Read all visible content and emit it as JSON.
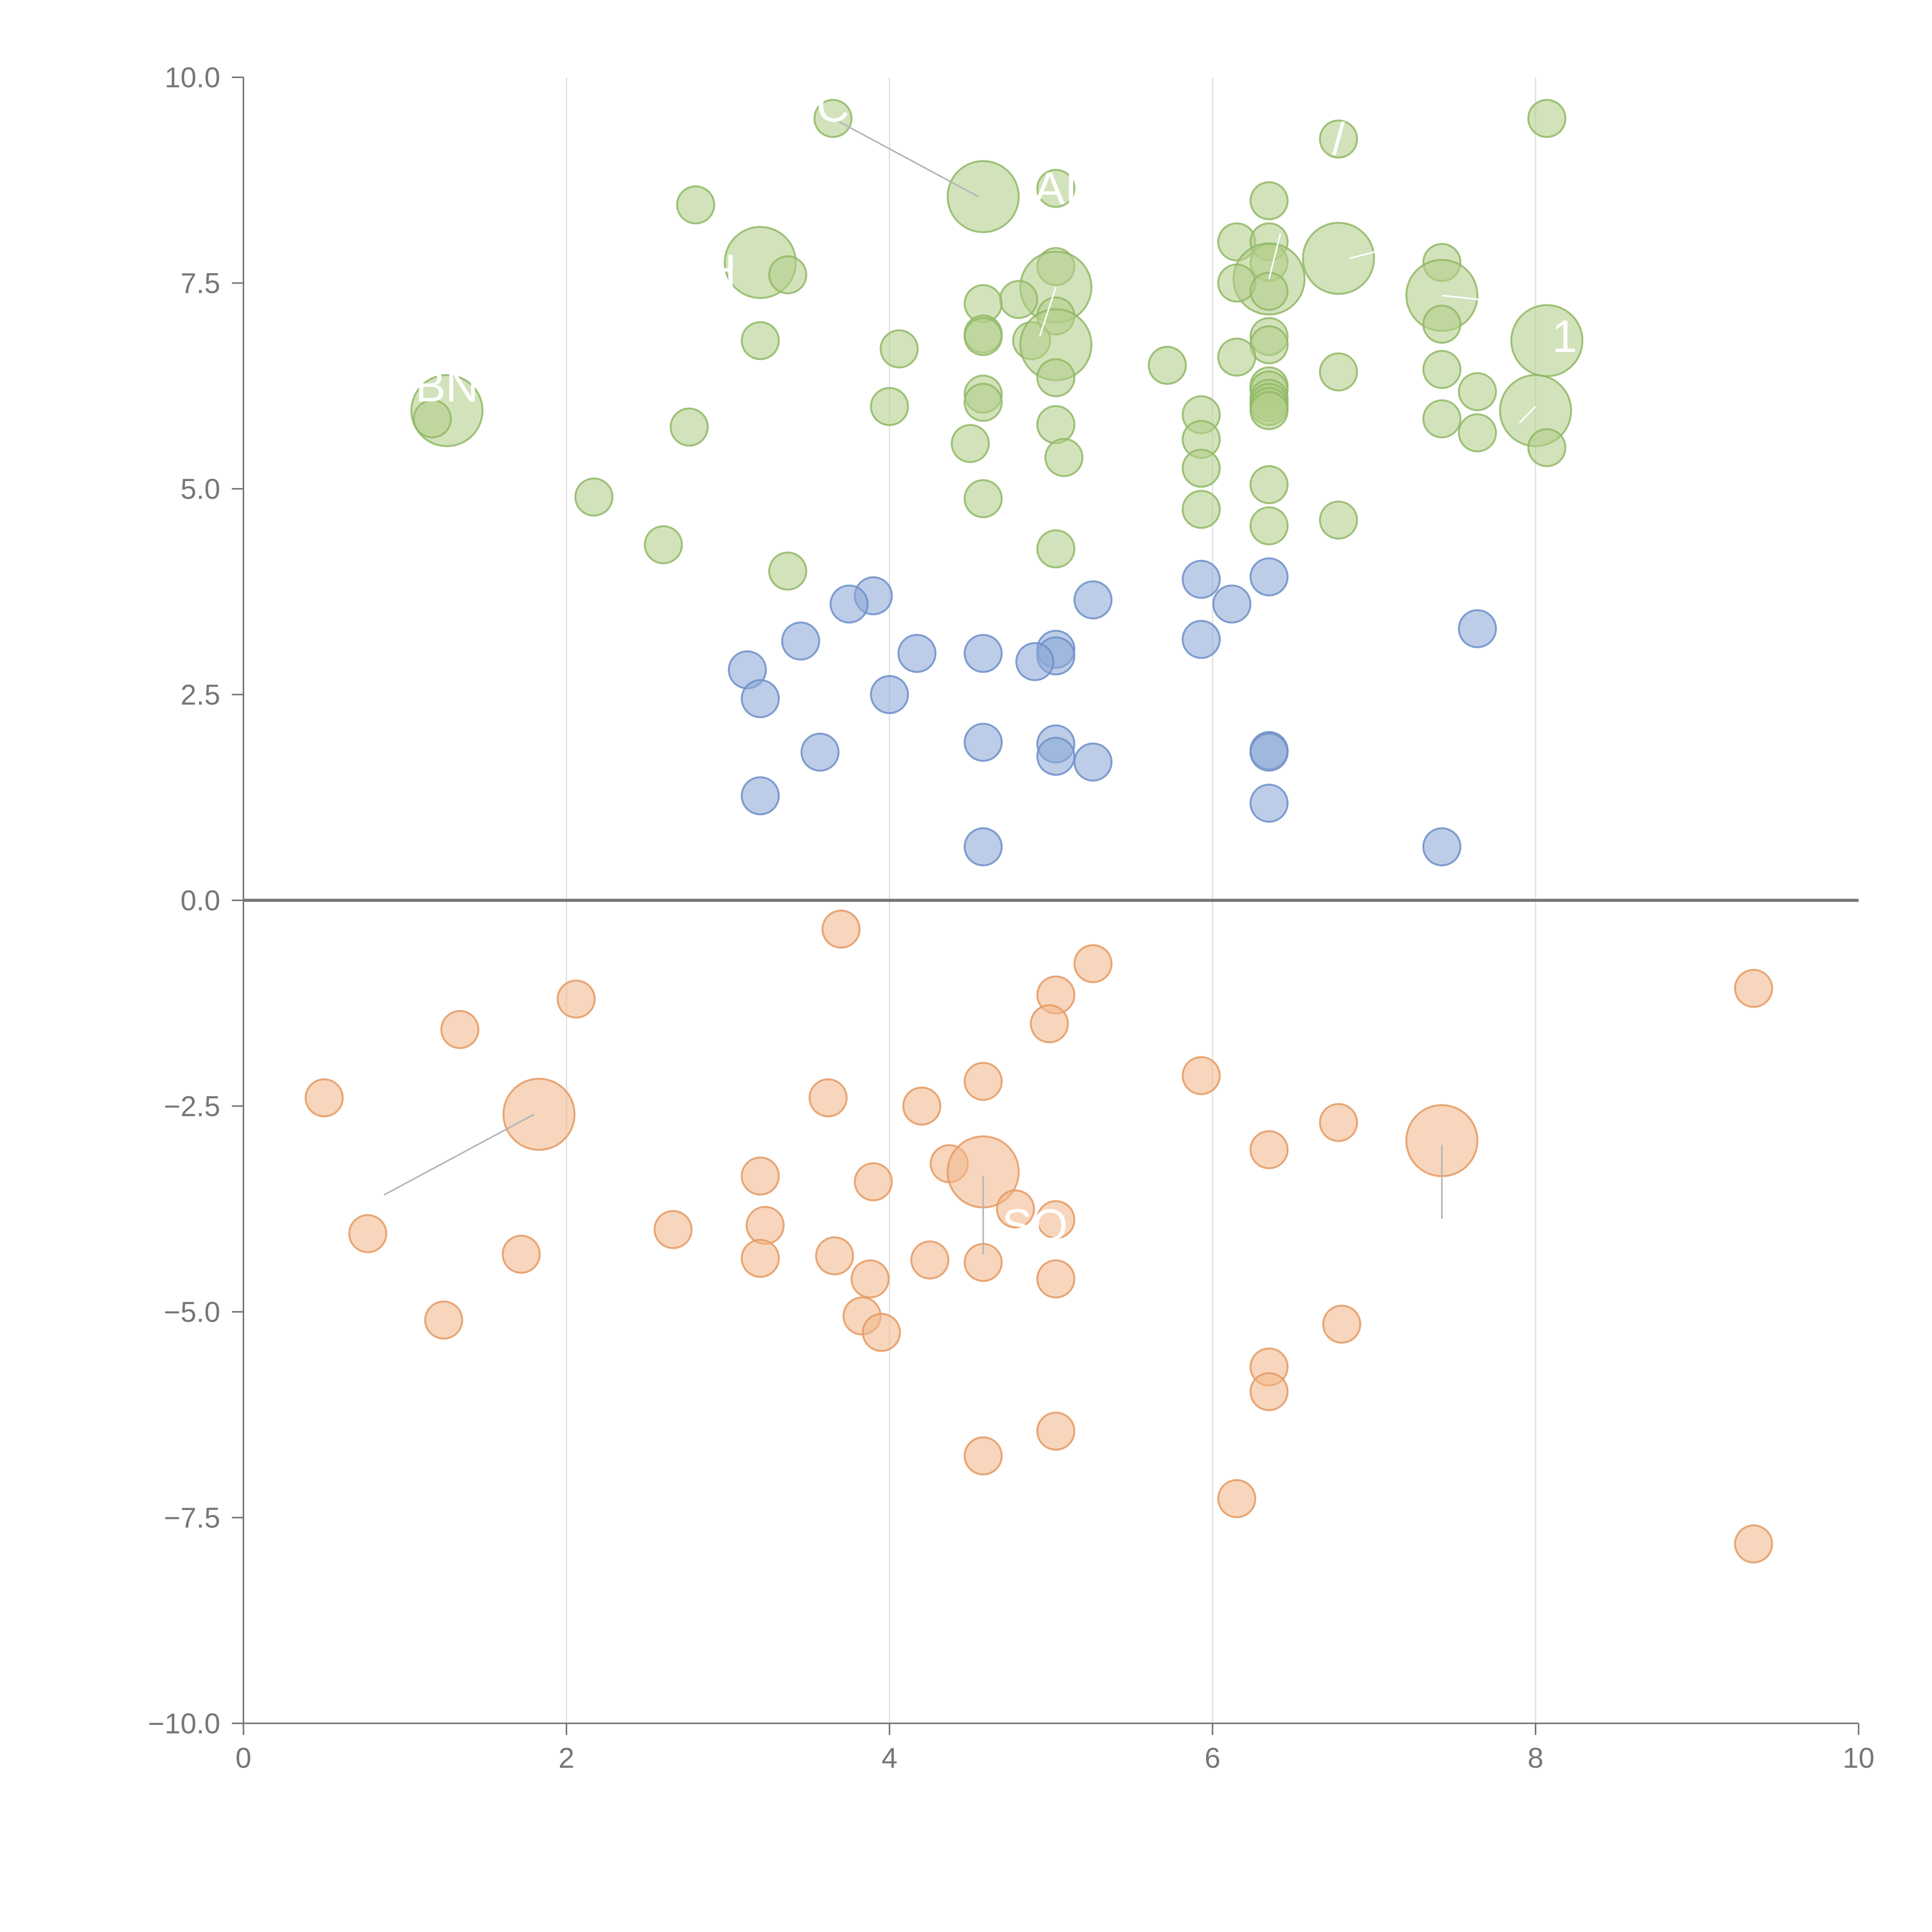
{
  "chart_data": {
    "type": "scatter",
    "title": "",
    "xlabel": "",
    "ylabel": "",
    "xlim": [
      0,
      10
    ],
    "ylim": [
      -10,
      10
    ],
    "x_ticks": [
      {
        "value": 0,
        "label": "0"
      },
      {
        "value": 2,
        "label": "2"
      },
      {
        "value": 4,
        "label": "4"
      },
      {
        "value": 6,
        "label": "6"
      },
      {
        "value": 8,
        "label": "8"
      },
      {
        "value": 10,
        "label": "10"
      }
    ],
    "y_ticks": [
      {
        "value": 10,
        "label": "10.0"
      },
      {
        "value": 7.5,
        "label": "7.5"
      },
      {
        "value": 5,
        "label": "5.0"
      },
      {
        "value": 2.5,
        "label": "2.5"
      },
      {
        "value": 0,
        "label": "0.0"
      },
      {
        "value": -2.5,
        "label": "−2.5"
      },
      {
        "value": -5,
        "label": "−5.0"
      },
      {
        "value": -7.5,
        "label": "−7.5"
      },
      {
        "value": -10,
        "label": "−10.0"
      }
    ],
    "grid": {
      "vertical": true,
      "horizontal": false
    },
    "zero_line": true,
    "legend": "none",
    "series": [
      {
        "color": "#b2cf8a",
        "stroke": "#92b866",
        "points": [
          {
            "x": 3.65,
            "y": 9.5
          },
          {
            "x": 8.07,
            "y": 9.5
          },
          {
            "x": 6.78,
            "y": 9.25
          },
          {
            "x": 5.03,
            "y": 8.65
          },
          {
            "x": 4.58,
            "y": 8.55,
            "big": true
          },
          {
            "x": 6.35,
            "y": 8.5
          },
          {
            "x": 2.8,
            "y": 8.45
          },
          {
            "x": 6.15,
            "y": 8.0
          },
          {
            "x": 6.35,
            "y": 8.0
          },
          {
            "x": 6.78,
            "y": 7.8,
            "big": true
          },
          {
            "x": 3.2,
            "y": 7.75,
            "big": true
          },
          {
            "x": 6.35,
            "y": 7.75
          },
          {
            "x": 7.42,
            "y": 7.75
          },
          {
            "x": 5.03,
            "y": 7.7
          },
          {
            "x": 3.37,
            "y": 7.6
          },
          {
            "x": 6.35,
            "y": 7.55,
            "big": true
          },
          {
            "x": 6.15,
            "y": 7.5
          },
          {
            "x": 5.03,
            "y": 7.45,
            "big": true
          },
          {
            "x": 6.35,
            "y": 7.4
          },
          {
            "x": 7.42,
            "y": 7.35,
            "big": true
          },
          {
            "x": 4.8,
            "y": 7.3
          },
          {
            "x": 4.58,
            "y": 7.25
          },
          {
            "x": 5.03,
            "y": 7.1
          },
          {
            "x": 7.42,
            "y": 7.0
          },
          {
            "x": 4.58,
            "y": 6.88
          },
          {
            "x": 4.58,
            "y": 6.85
          },
          {
            "x": 6.35,
            "y": 6.85
          },
          {
            "x": 3.2,
            "y": 6.8
          },
          {
            "x": 8.07,
            "y": 6.8,
            "big": true
          },
          {
            "x": 4.88,
            "y": 6.8
          },
          {
            "x": 5.03,
            "y": 6.75,
            "big": true
          },
          {
            "x": 6.35,
            "y": 6.75
          },
          {
            "x": 4.06,
            "y": 6.7
          },
          {
            "x": 6.15,
            "y": 6.6
          },
          {
            "x": 5.72,
            "y": 6.5
          },
          {
            "x": 7.42,
            "y": 6.45
          },
          {
            "x": 6.78,
            "y": 6.42
          },
          {
            "x": 5.03,
            "y": 6.35
          },
          {
            "x": 6.35,
            "y": 6.25
          },
          {
            "x": 6.35,
            "y": 6.2
          },
          {
            "x": 7.64,
            "y": 6.18
          },
          {
            "x": 4.58,
            "y": 6.15
          },
          {
            "x": 6.35,
            "y": 6.1
          },
          {
            "x": 4.58,
            "y": 6.05
          },
          {
            "x": 6.35,
            "y": 6.05
          },
          {
            "x": 6.35,
            "y": 6.0
          },
          {
            "x": 4.0,
            "y": 6.0
          },
          {
            "x": 1.26,
            "y": 5.95,
            "big": true
          },
          {
            "x": 8.0,
            "y": 5.95,
            "big": true
          },
          {
            "x": 6.35,
            "y": 5.95
          },
          {
            "x": 5.93,
            "y": 5.9
          },
          {
            "x": 1.17,
            "y": 5.85
          },
          {
            "x": 7.42,
            "y": 5.85
          },
          {
            "x": 5.03,
            "y": 5.78
          },
          {
            "x": 2.76,
            "y": 5.75
          },
          {
            "x": 7.64,
            "y": 5.68
          },
          {
            "x": 5.93,
            "y": 5.6
          },
          {
            "x": 4.5,
            "y": 5.55
          },
          {
            "x": 8.07,
            "y": 5.5
          },
          {
            "x": 5.08,
            "y": 5.38
          },
          {
            "x": 5.93,
            "y": 5.25
          },
          {
            "x": 6.35,
            "y": 5.05
          },
          {
            "x": 2.17,
            "y": 4.9
          },
          {
            "x": 4.58,
            "y": 4.88
          },
          {
            "x": 5.93,
            "y": 4.75
          },
          {
            "x": 6.78,
            "y": 4.62
          },
          {
            "x": 6.35,
            "y": 4.55
          },
          {
            "x": 2.6,
            "y": 4.32
          },
          {
            "x": 5.03,
            "y": 4.27
          },
          {
            "x": 3.37,
            "y": 4.0
          }
        ]
      },
      {
        "color": "#8ea9d8",
        "stroke": "#6f8fc8",
        "points": [
          {
            "x": 3.9,
            "y": 3.7
          },
          {
            "x": 6.35,
            "y": 3.93
          },
          {
            "x": 5.93,
            "y": 3.9
          },
          {
            "x": 5.26,
            "y": 3.65
          },
          {
            "x": 3.75,
            "y": 3.6
          },
          {
            "x": 6.12,
            "y": 3.6
          },
          {
            "x": 7.64,
            "y": 3.3
          },
          {
            "x": 5.93,
            "y": 3.17
          },
          {
            "x": 3.45,
            "y": 3.15
          },
          {
            "x": 5.03,
            "y": 3.05
          },
          {
            "x": 4.17,
            "y": 3.0
          },
          {
            "x": 4.58,
            "y": 3.0
          },
          {
            "x": 5.03,
            "y": 2.97
          },
          {
            "x": 4.9,
            "y": 2.9
          },
          {
            "x": 3.12,
            "y": 2.8
          },
          {
            "x": 4.0,
            "y": 2.5
          },
          {
            "x": 3.2,
            "y": 2.45
          },
          {
            "x": 4.58,
            "y": 1.92
          },
          {
            "x": 5.03,
            "y": 1.9
          },
          {
            "x": 6.35,
            "y": 1.82
          },
          {
            "x": 6.35,
            "y": 1.8
          },
          {
            "x": 3.57,
            "y": 1.8
          },
          {
            "x": 5.03,
            "y": 1.75
          },
          {
            "x": 5.26,
            "y": 1.68
          },
          {
            "x": 3.2,
            "y": 1.27
          },
          {
            "x": 6.35,
            "y": 1.18
          },
          {
            "x": 4.58,
            "y": 0.65
          },
          {
            "x": 7.42,
            "y": 0.65
          }
        ]
      },
      {
        "color": "#f2b98e",
        "stroke": "#e59a63",
        "points": [
          {
            "x": 3.7,
            "y": -0.35
          },
          {
            "x": 5.26,
            "y": -0.77
          },
          {
            "x": 9.35,
            "y": -1.07
          },
          {
            "x": 5.03,
            "y": -1.15
          },
          {
            "x": 2.06,
            "y": -1.2
          },
          {
            "x": 4.99,
            "y": -1.5
          },
          {
            "x": 1.34,
            "y": -1.57
          },
          {
            "x": 5.93,
            "y": -2.13
          },
          {
            "x": 4.58,
            "y": -2.2
          },
          {
            "x": 0.5,
            "y": -2.4
          },
          {
            "x": 3.62,
            "y": -2.4
          },
          {
            "x": 4.2,
            "y": -2.5
          },
          {
            "x": 1.83,
            "y": -2.6,
            "big": true
          },
          {
            "x": 6.78,
            "y": -2.7
          },
          {
            "x": 7.42,
            "y": -2.92,
            "big": true
          },
          {
            "x": 6.35,
            "y": -3.03
          },
          {
            "x": 4.37,
            "y": -3.2
          },
          {
            "x": 4.58,
            "y": -3.3,
            "big": true
          },
          {
            "x": 3.2,
            "y": -3.35
          },
          {
            "x": 3.9,
            "y": -3.42
          },
          {
            "x": 4.78,
            "y": -3.75
          },
          {
            "x": 5.03,
            "y": -3.88
          },
          {
            "x": 3.23,
            "y": -3.95
          },
          {
            "x": 2.66,
            "y": -4.0
          },
          {
            "x": 0.77,
            "y": -4.05
          },
          {
            "x": 1.72,
            "y": -4.3
          },
          {
            "x": 3.2,
            "y": -4.35
          },
          {
            "x": 3.66,
            "y": -4.32
          },
          {
            "x": 4.25,
            "y": -4.37
          },
          {
            "x": 4.58,
            "y": -4.4
          },
          {
            "x": 3.88,
            "y": -4.6
          },
          {
            "x": 5.03,
            "y": -4.6
          },
          {
            "x": 3.83,
            "y": -5.05
          },
          {
            "x": 1.24,
            "y": -5.1
          },
          {
            "x": 6.8,
            "y": -5.15
          },
          {
            "x": 3.95,
            "y": -5.25
          },
          {
            "x": 6.35,
            "y": -5.67
          },
          {
            "x": 6.35,
            "y": -5.97
          },
          {
            "x": 5.03,
            "y": -6.45
          },
          {
            "x": 4.58,
            "y": -6.75
          },
          {
            "x": 6.15,
            "y": -7.27
          },
          {
            "x": 9.35,
            "y": -7.82
          }
        ]
      }
    ],
    "annotations": [
      {
        "text": "BN",
        "x": 1.26,
        "y": 6.25
      },
      {
        "text": "H",
        "x": 2.95,
        "y": 7.65
      },
      {
        "text": "C",
        "x": 3.65,
        "y": 9.65
      },
      {
        "text": "AI",
        "x": 5.03,
        "y": 8.65
      },
      {
        "text": "/",
        "x": 6.78,
        "y": 9.25
      },
      {
        "text": "1",
        "x": 8.18,
        "y": 6.85
      },
      {
        "text": "SO",
        "x": 4.9,
        "y": -3.95
      }
    ],
    "leader_lines": [
      {
        "from": [
          3.65,
          9.5
        ],
        "to": [
          4.55,
          8.55
        ],
        "color": "#b5b5b5"
      },
      {
        "from": [
          0.87,
          -3.58
        ],
        "to": [
          1.8,
          -2.6
        ],
        "color": "#b5b5b5"
      },
      {
        "from": [
          4.58,
          -3.35
        ],
        "to": [
          4.58,
          -4.3
        ],
        "color": "#b5b5b5"
      },
      {
        "from": [
          7.42,
          -2.97
        ],
        "to": [
          7.42,
          -3.87
        ],
        "color": "#b5b5b5"
      },
      {
        "from": [
          5.03,
          7.45
        ],
        "to": [
          4.93,
          6.85
        ],
        "color": "#ffffff"
      },
      {
        "from": [
          6.35,
          7.55
        ],
        "to": [
          6.42,
          8.1
        ],
        "color": "#ffffff"
      },
      {
        "from": [
          6.85,
          7.8
        ],
        "to": [
          7.05,
          7.9
        ],
        "color": "#ffffff"
      },
      {
        "from": [
          7.42,
          7.35
        ],
        "to": [
          7.65,
          7.3
        ],
        "color": "#ffffff"
      },
      {
        "from": [
          8.0,
          6.0
        ],
        "to": [
          7.9,
          5.8
        ],
        "color": "#ffffff"
      }
    ]
  }
}
